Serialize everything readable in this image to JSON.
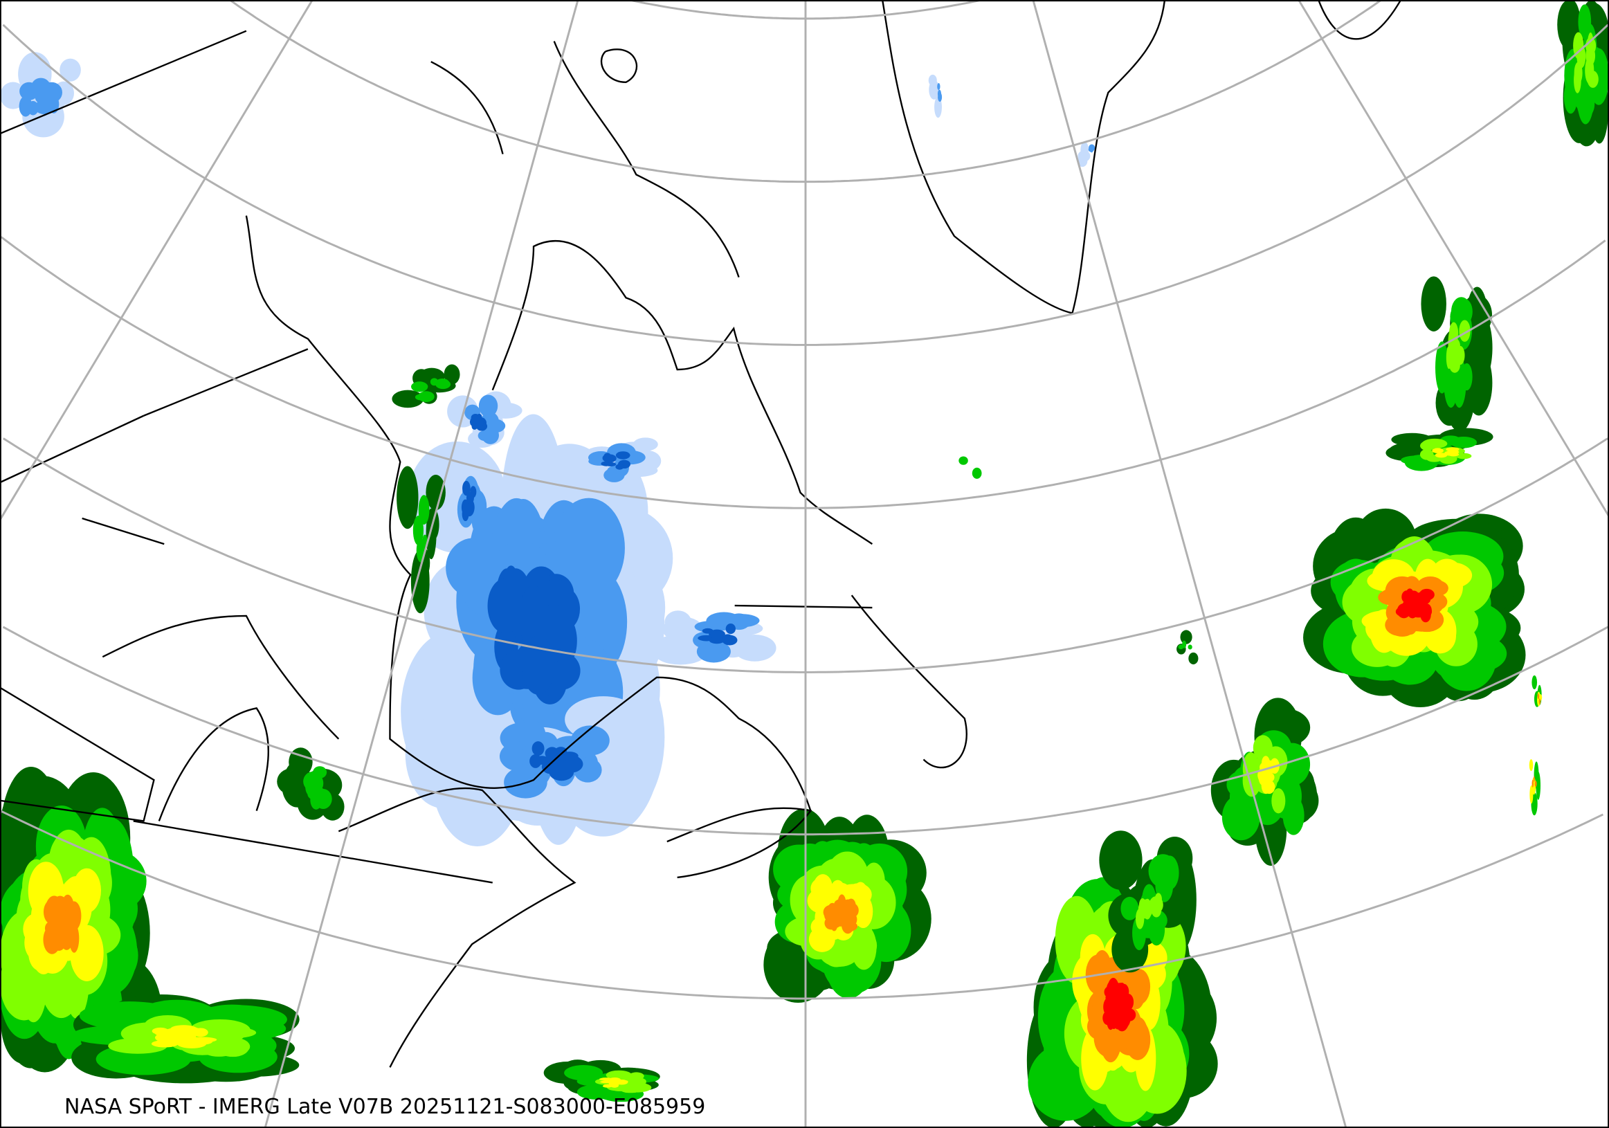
{
  "caption": "NASA SPoRT - IMERG Late V07B 20251121-S083000-E085959",
  "map": {
    "graticule_color": "#b0b0b0",
    "coastline_color": "#000000",
    "background": "#ffffff",
    "precip_colors": {
      "light_blue": "#c6dcfc",
      "blue": "#4a9af0",
      "dark_blue": "#0a5cc8",
      "magenta": "#e040e0",
      "dark_green": "#006400",
      "green": "#00c800",
      "light_green": "#80ff00",
      "yellow": "#ffff00",
      "orange": "#ff8c00",
      "red": "#ff0000"
    }
  }
}
